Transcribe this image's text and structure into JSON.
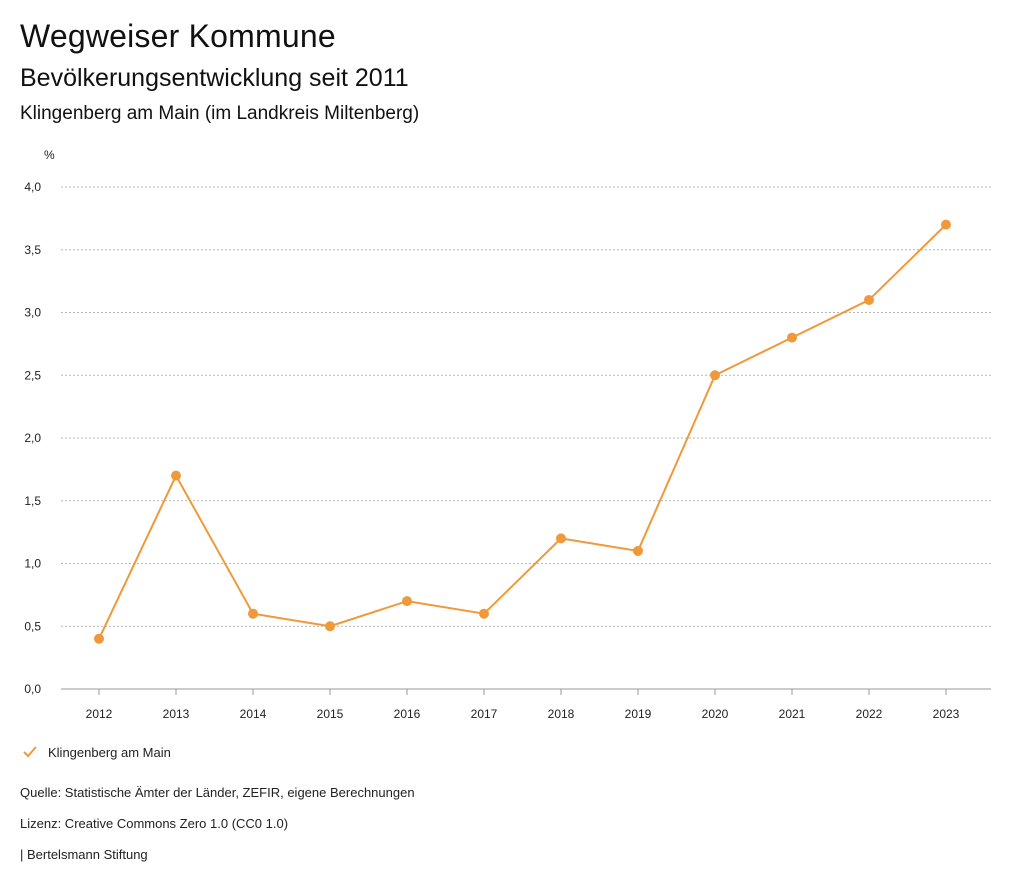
{
  "header": {
    "title": "Wegweiser Kommune",
    "subtitle": "Bevölkerungsentwicklung seit 2011",
    "region": "Klingenberg am Main (im Landkreis Miltenberg)"
  },
  "chart_data": {
    "type": "line",
    "title": "Bevölkerungsentwicklung seit 2011",
    "xlabel": "",
    "ylabel": "%",
    "ylim": [
      0,
      4
    ],
    "yticks": [
      0,
      0.5,
      1,
      1.5,
      2,
      2.5,
      3,
      3.5,
      4
    ],
    "ytick_labels": [
      "0,0",
      "0,5",
      "1,0",
      "1,5",
      "2,0",
      "2,5",
      "3,0",
      "3,5",
      "4,0"
    ],
    "categories": [
      "2012",
      "2013",
      "2014",
      "2015",
      "2016",
      "2017",
      "2018",
      "2019",
      "2020",
      "2021",
      "2022",
      "2023"
    ],
    "series": [
      {
        "name": "Klingenberg am Main",
        "color": "#f0993a",
        "values": [
          0.4,
          1.7,
          0.6,
          0.5,
          0.7,
          0.6,
          1.2,
          1.1,
          2.5,
          2.8,
          3.1,
          3.7
        ]
      }
    ],
    "grid": true,
    "legend_position": "bottom-left"
  },
  "legend": {
    "label": "Klingenberg am Main",
    "icon": "check-icon",
    "color": "#f0993a"
  },
  "footer": {
    "source": "Quelle: Statistische Ämter der Länder, ZEFIR, eigene Berechnungen",
    "license": "Lizenz: Creative Commons Zero 1.0 (CC0 1.0)",
    "publisher": "| Bertelsmann Stiftung"
  }
}
